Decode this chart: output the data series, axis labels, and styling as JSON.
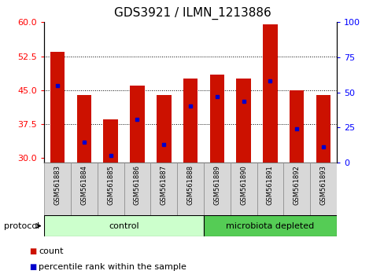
{
  "title": "GDS3921 / ILMN_1213886",
  "samples": [
    "GSM561883",
    "GSM561884",
    "GSM561885",
    "GSM561886",
    "GSM561887",
    "GSM561888",
    "GSM561889",
    "GSM561890",
    "GSM561891",
    "GSM561892",
    "GSM561893"
  ],
  "count_values": [
    53.5,
    44.0,
    38.5,
    46.0,
    44.0,
    47.5,
    48.5,
    47.5,
    59.5,
    45.0,
    44.0
  ],
  "percentile_values": [
    46.0,
    33.5,
    30.5,
    38.5,
    33.0,
    41.5,
    43.5,
    42.5,
    47.0,
    36.5,
    32.5
  ],
  "bar_color": "#cc1100",
  "blue_color": "#0000cc",
  "ylim_left": [
    29.0,
    60.0
  ],
  "ylim_right": [
    0,
    100
  ],
  "yticks_left": [
    30.0,
    37.5,
    45.0,
    52.5,
    60.0
  ],
  "yticks_right": [
    0,
    25,
    50,
    75,
    100
  ],
  "control_count": 6,
  "control_label": "control",
  "depleted_label": "microbiota depleted",
  "legend_count": "count",
  "legend_percentile": "percentile rank within the sample",
  "protocol_label": "protocol",
  "control_color": "#ccffcc",
  "depleted_color": "#55cc55",
  "bar_width": 0.55,
  "title_fontsize": 11,
  "axis_tick_fontsize": 8,
  "sample_fontsize": 6.0,
  "band_fontsize": 8,
  "legend_fontsize": 8,
  "protocol_fontsize": 8
}
